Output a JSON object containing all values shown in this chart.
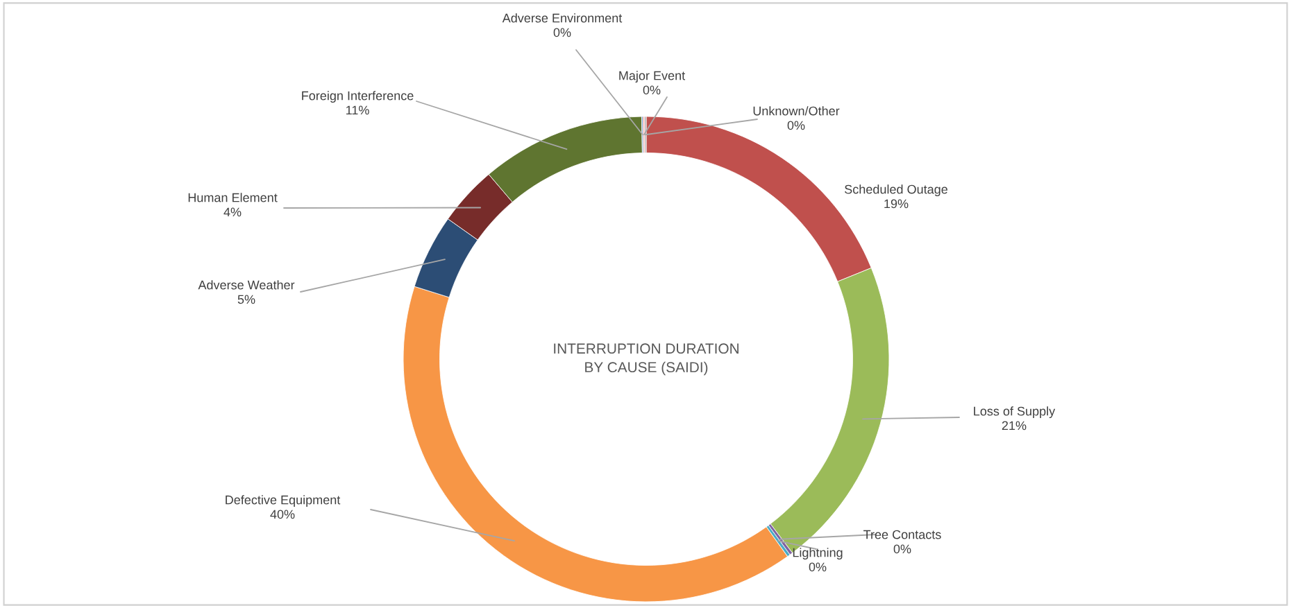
{
  "chart_data": {
    "type": "donut",
    "title": "INTERRUPTION DURATION\nBY CAUSE (SAIDI)",
    "categories": [
      "Scheduled Outage",
      "Loss of Supply",
      "Tree Contacts",
      "Lightning",
      "Defective Equipment",
      "Adverse Weather",
      "Human Element",
      "Foreign Interference",
      "Adverse Environment",
      "Major Event",
      "Unknown/Other"
    ],
    "values": [
      19,
      21,
      0.2,
      0.2,
      40,
      5,
      4,
      11,
      0.1,
      0.1,
      0.1
    ],
    "value_labels": [
      "19%",
      "21%",
      "0%",
      "0%",
      "40%",
      "5%",
      "4%",
      "11%",
      "0%",
      "0%",
      "0%"
    ],
    "colors": [
      "#c0504d",
      "#9bbb59",
      "#8064a2",
      "#4bacc6",
      "#f79646",
      "#2c4d75",
      "#772c2a",
      "#5f7530",
      "#729aca",
      "#ff9c9c",
      "#a5a5a5"
    ],
    "data_labels": true,
    "legend": false
  }
}
